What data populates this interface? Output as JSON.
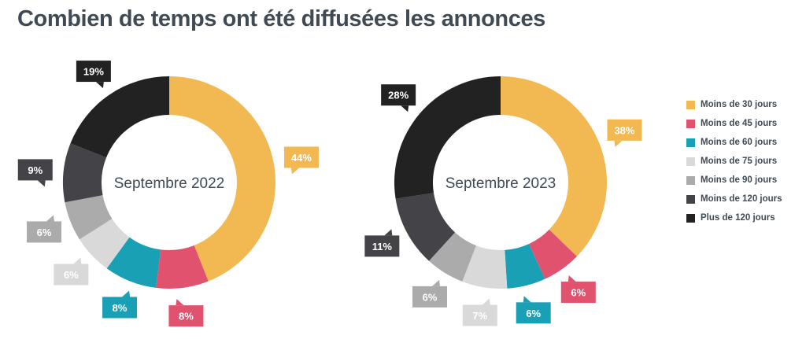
{
  "title": "Combien de temps ont été diffusées les annonces",
  "chart_data": {
    "type": "donut",
    "categories": [
      "Moins de 30 jours",
      "Moins de 45 jours",
      "Moins de 60 jours",
      "Moins de 75 jours",
      "Moins de 90 jours",
      "Moins de 120 jours",
      "Plus de 120 jours"
    ],
    "colors": [
      "#f2b851",
      "#e0526e",
      "#1aa0b4",
      "#d9d9d9",
      "#ababab",
      "#444448",
      "#222222"
    ],
    "series": [
      {
        "name": "Septembre 2022",
        "values": [
          44,
          8,
          8,
          6,
          6,
          9,
          19
        ],
        "labels": [
          "44%",
          "8%",
          "8%",
          "6%",
          "6%",
          "9%",
          "19%"
        ]
      },
      {
        "name": "Septembre 2023",
        "values": [
          38,
          6,
          6,
          7,
          6,
          11,
          28
        ],
        "labels": [
          "38%",
          "6%",
          "6%",
          "7%",
          "6%",
          "11%",
          "28%"
        ]
      }
    ],
    "legend_position": "right"
  }
}
